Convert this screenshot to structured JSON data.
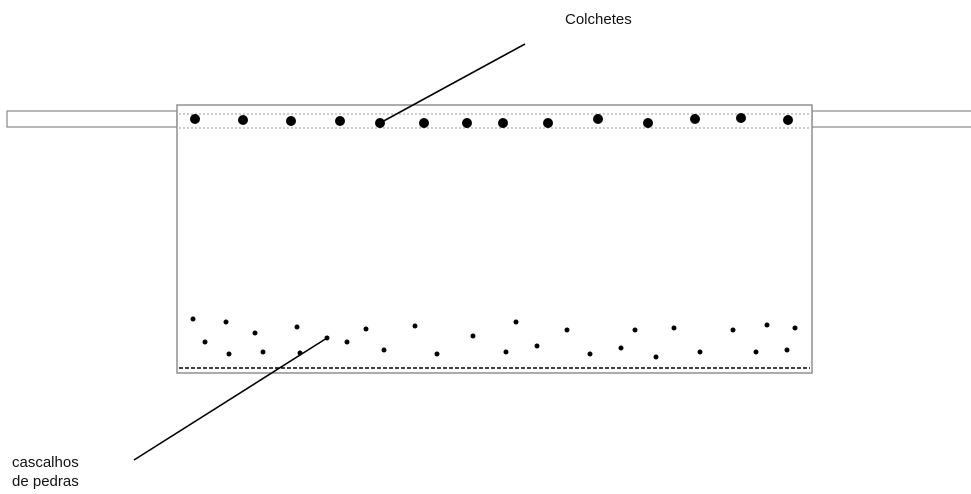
{
  "labels": {
    "top": "Colchetes",
    "bottom_line1": "cascalhos",
    "bottom_line2": "de pedras"
  },
  "colors": {
    "stroke": "#888888",
    "dots": "#000000",
    "dashed_rule": "#bbbbbb",
    "leader": "#000000",
    "bottom_dashed": "#000000"
  },
  "icons": {
    "hook": "black-dot",
    "gravel": "small-black-dot"
  }
}
